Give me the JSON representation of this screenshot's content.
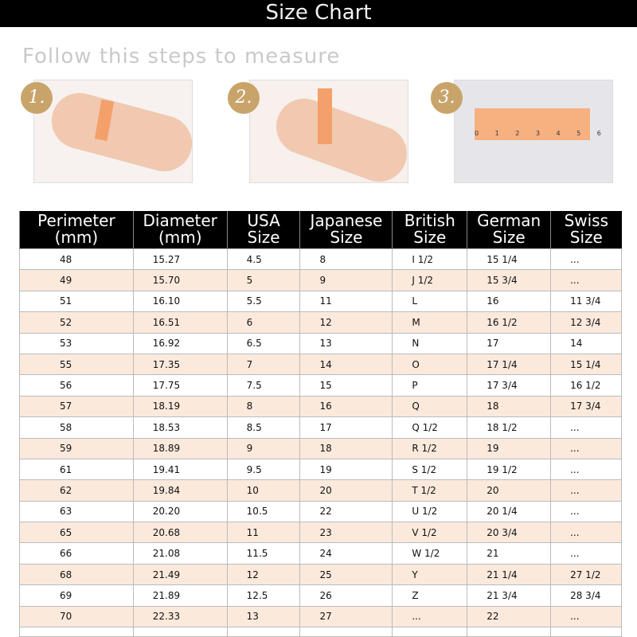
{
  "title": "Size Chart",
  "subtitle": "Follow this steps to measure",
  "steps": [
    "1.",
    "2.",
    "3."
  ],
  "ruler_labels": "0 1 2 3 4 5 6",
  "headers": [
    [
      "Perimeter",
      "(mm)"
    ],
    [
      "Diameter",
      "(mm)"
    ],
    [
      "USA",
      "Size"
    ],
    [
      "Japanese",
      "Size"
    ],
    [
      "British",
      "Size"
    ],
    [
      "German",
      "Size"
    ],
    [
      "Swiss",
      "Size"
    ]
  ],
  "rows": [
    [
      "48",
      "15.27",
      "4.5",
      "8",
      "I 1/2",
      "15 1/4",
      "..."
    ],
    [
      "49",
      "15.70",
      "5",
      "9",
      "J 1/2",
      "15 3/4",
      "..."
    ],
    [
      "51",
      "16.10",
      "5.5",
      "11",
      "L",
      "16",
      "11 3/4"
    ],
    [
      "52",
      "16.51",
      "6",
      "12",
      "M",
      "16 1/2",
      "12 3/4"
    ],
    [
      "53",
      "16.92",
      "6.5",
      "13",
      "N",
      "17",
      "14"
    ],
    [
      "55",
      "17.35",
      "7",
      "14",
      "O",
      "17 1/4",
      "15 1/4"
    ],
    [
      "56",
      "17.75",
      "7.5",
      "15",
      "P",
      "17 3/4",
      "16 1/2"
    ],
    [
      "57",
      "18.19",
      "8",
      "16",
      "Q",
      "18",
      "17 3/4"
    ],
    [
      "58",
      "18.53",
      "8.5",
      "17",
      "Q 1/2",
      "18 1/2",
      "..."
    ],
    [
      "59",
      "18.89",
      "9",
      "18",
      "R 1/2",
      "19",
      "..."
    ],
    [
      "61",
      "19.41",
      "9.5",
      "19",
      "S 1/2",
      "19 1/2",
      "..."
    ],
    [
      "62",
      "19.84",
      "10",
      "20",
      "T 1/2",
      "20",
      "..."
    ],
    [
      "63",
      "20.20",
      "10.5",
      "22",
      "U 1/2",
      "20 1/4",
      "..."
    ],
    [
      "65",
      "20.68",
      "11",
      "23",
      "V 1/2",
      "20 3/4",
      "..."
    ],
    [
      "66",
      "21.08",
      "11.5",
      "24",
      "W 1/2",
      "21",
      "..."
    ],
    [
      "68",
      "21.49",
      "12",
      "25",
      "Y",
      "21 1/4",
      "27 1/2"
    ],
    [
      "69",
      "21.89",
      "12.5",
      "26",
      "Z",
      "21 3/4",
      "28 3/4"
    ],
    [
      "70",
      "22.33",
      "13",
      "27",
      "...",
      "22",
      "..."
    ]
  ]
}
